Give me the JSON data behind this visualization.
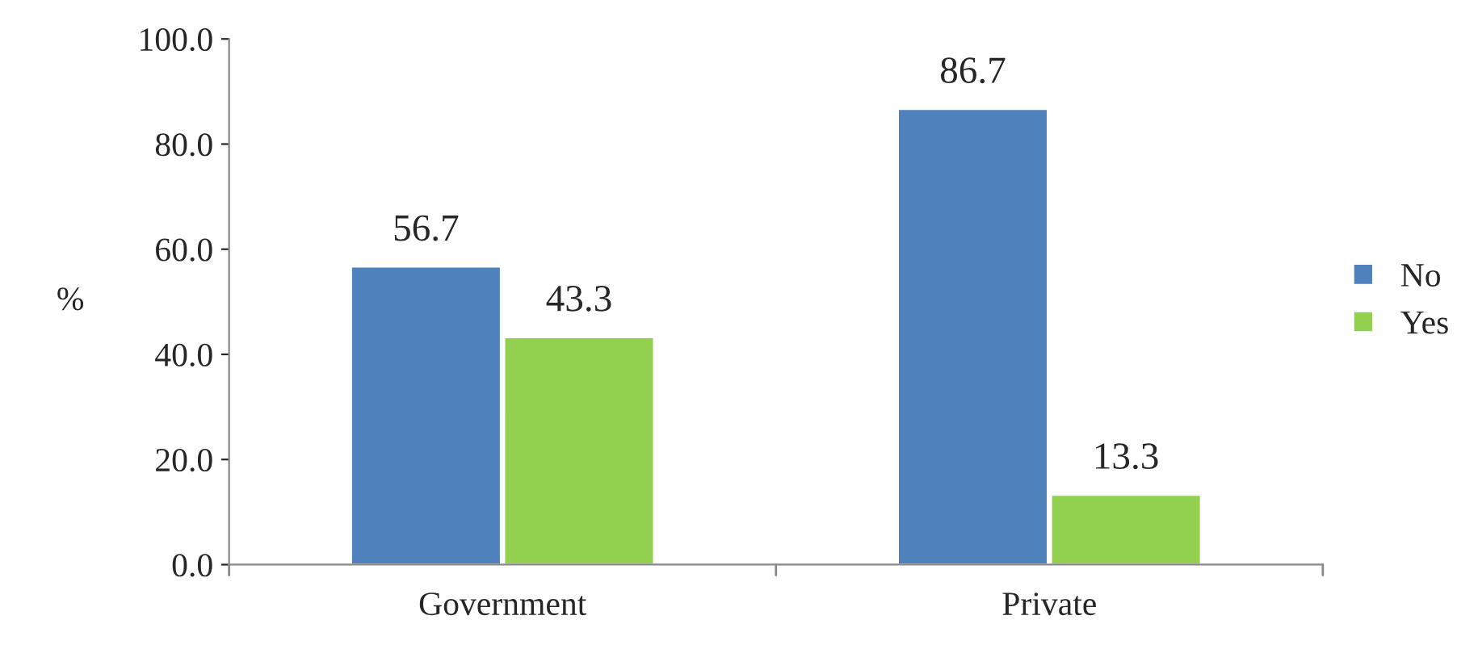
{
  "chart_data": {
    "type": "bar",
    "ylabel": "%",
    "categories": [
      "Government",
      "Private"
    ],
    "series": [
      {
        "name": "No",
        "color": "#4f81bd",
        "values": [
          56.7,
          86.7
        ]
      },
      {
        "name": "Yes",
        "color": "#92d050",
        "values": [
          43.3,
          13.3
        ]
      }
    ],
    "ylim": [
      0,
      100
    ],
    "yticks": [
      {
        "value": 0,
        "label": "0.0"
      },
      {
        "value": 20,
        "label": "20.0"
      },
      {
        "value": 40,
        "label": "40.0"
      },
      {
        "value": 60,
        "label": "60.0"
      },
      {
        "value": 80,
        "label": "80.0"
      },
      {
        "value": 100,
        "label": "100.0"
      }
    ],
    "data_labels": true,
    "legend": "right",
    "grid": false
  }
}
